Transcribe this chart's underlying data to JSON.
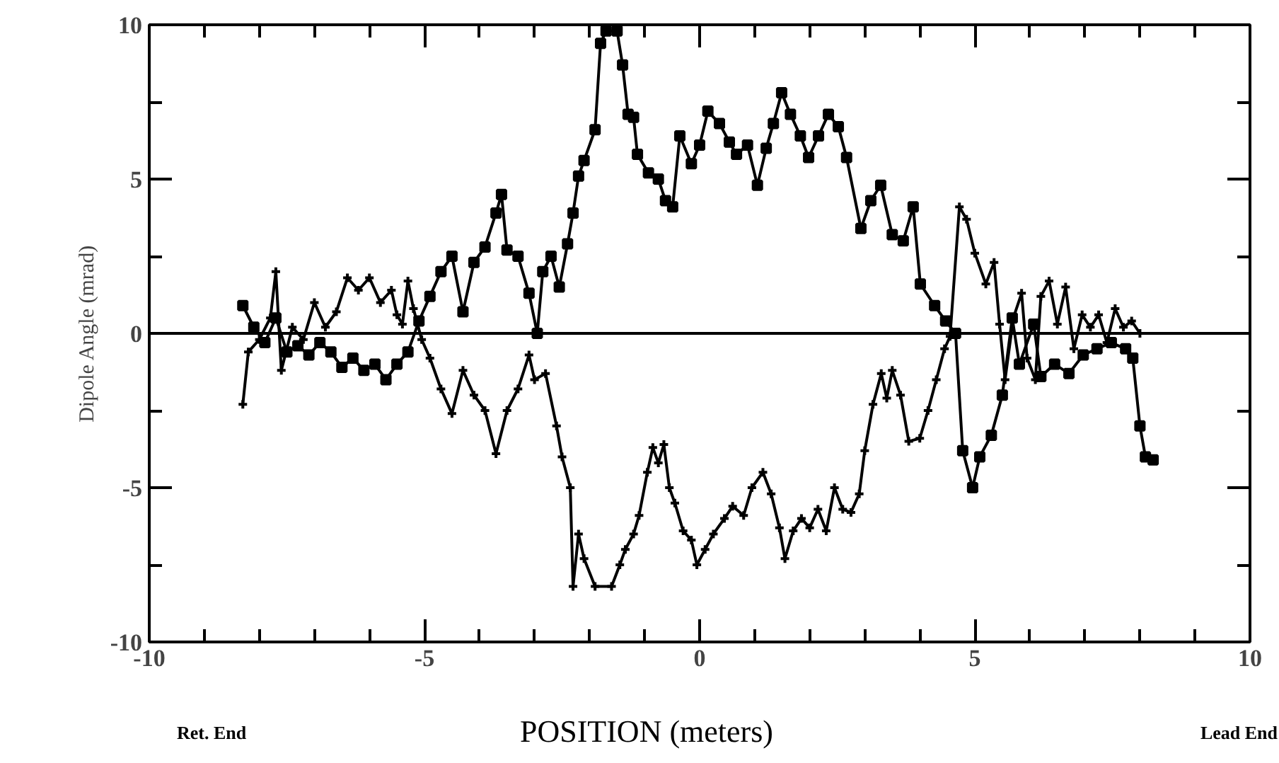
{
  "chart_data": {
    "type": "line",
    "xlabel": "POSITION (meters)",
    "ylabel": "Dipole Angle (mrad)",
    "annotations": [
      "Ret. End",
      "Lead End"
    ],
    "xlim": [
      -10,
      10
    ],
    "ylim": [
      -10,
      10
    ],
    "xticks": [
      -10,
      {
        "value": -9,
        "label": null
      },
      {
        "value": -8,
        "label": null
      },
      {
        "value": -7,
        "label": null
      },
      {
        "value": -6,
        "label": null
      },
      -5,
      {
        "value": -4,
        "label": null
      },
      {
        "value": -3,
        "label": null
      },
      {
        "value": -2,
        "label": null
      },
      {
        "value": -1,
        "label": null
      },
      0,
      {
        "value": 1,
        "label": null
      },
      {
        "value": 2,
        "label": null
      },
      {
        "value": 3,
        "label": null
      },
      {
        "value": 4,
        "label": null
      },
      5,
      {
        "value": 6,
        "label": null
      },
      {
        "value": 7,
        "label": null
      },
      {
        "value": 8,
        "label": null
      },
      {
        "value": 9,
        "label": null
      },
      10
    ],
    "yticks": [
      -10,
      {
        "value": -7.5,
        "label": null
      },
      -5,
      {
        "value": -2.5,
        "label": null
      },
      0,
      {
        "value": 2.5,
        "label": null
      },
      5,
      {
        "value": 7.5,
        "label": null
      },
      10
    ],
    "grid": false,
    "line_style": "solid",
    "ref_lines": [
      {
        "axis": "y",
        "value": 0,
        "color": "#000000"
      }
    ],
    "series": [
      {
        "color": "#000000",
        "marker": "square",
        "x": [
          -8.3,
          -8.1,
          -7.9,
          -7.7,
          -7.5,
          -7.3,
          -7.1,
          -6.9,
          -6.7,
          -6.5,
          -6.3,
          -6.1,
          -5.9,
          -5.7,
          -5.5,
          -5.3,
          -5.1,
          -4.9,
          -4.7,
          -4.5,
          -4.3,
          -4.1,
          -3.9,
          -3.7,
          -3.6,
          -3.5,
          -3.3,
          -3.1,
          -2.95,
          -2.85,
          -2.7,
          -2.55,
          -2.4,
          -2.3,
          -2.2,
          -2.1,
          -1.9,
          -1.8,
          -1.7,
          -1.5,
          -1.4,
          -1.3,
          -1.2,
          -1.13,
          -0.93,
          -0.75,
          -0.62,
          -0.49,
          -0.36,
          -0.15,
          0.0,
          0.15,
          0.36,
          0.54,
          0.67,
          0.87,
          1.05,
          1.21,
          1.34,
          1.49,
          1.65,
          1.83,
          1.98,
          2.16,
          2.34,
          2.52,
          2.67,
          2.93,
          3.11,
          3.29,
          3.5,
          3.7,
          3.88,
          4.01,
          4.27,
          4.47,
          4.65,
          4.78,
          4.96,
          5.09,
          5.3,
          5.5,
          5.68,
          5.81,
          6.07,
          6.2,
          6.45,
          6.71,
          6.97,
          7.22,
          7.48,
          7.74,
          7.87,
          8.0,
          8.1,
          8.24
        ],
        "values": [
          0.9,
          0.2,
          -0.3,
          0.5,
          -0.6,
          -0.4,
          -0.7,
          -0.3,
          -0.6,
          -1.1,
          -0.8,
          -1.2,
          -1.0,
          -1.5,
          -1.0,
          -0.6,
          0.4,
          1.2,
          2.0,
          2.5,
          0.7,
          2.3,
          2.8,
          3.9,
          4.5,
          2.7,
          2.5,
          1.3,
          0.0,
          2.0,
          2.5,
          1.5,
          2.9,
          3.9,
          5.1,
          5.6,
          6.6,
          9.4,
          9.8,
          9.8,
          8.7,
          7.1,
          7.0,
          5.8,
          5.2,
          5.0,
          4.3,
          4.1,
          6.4,
          5.5,
          6.1,
          7.2,
          6.8,
          6.2,
          5.8,
          6.1,
          4.8,
          6.0,
          6.8,
          7.8,
          7.1,
          6.4,
          5.7,
          6.4,
          7.1,
          6.7,
          5.7,
          3.4,
          4.3,
          4.8,
          3.2,
          3.0,
          4.1,
          1.6,
          0.9,
          0.4,
          0.0,
          -3.8,
          -5.0,
          -4.0,
          -3.3,
          -2.0,
          0.5,
          -1.0,
          0.3,
          -1.4,
          -1.0,
          -1.3,
          -0.7,
          -0.5,
          -0.3,
          -0.5,
          -0.8,
          -3.0,
          -4.0,
          -4.1
        ]
      },
      {
        "color": "#000000",
        "marker": "cross",
        "x": [
          -8.3,
          -8.2,
          -8.0,
          -7.8,
          -7.7,
          -7.6,
          -7.4,
          -7.2,
          -7.0,
          -6.8,
          -6.6,
          -6.4,
          -6.2,
          -6.0,
          -5.8,
          -5.6,
          -5.5,
          -5.4,
          -5.3,
          -5.2,
          -5.05,
          -4.9,
          -4.7,
          -4.5,
          -4.3,
          -4.1,
          -3.9,
          -3.7,
          -3.5,
          -3.3,
          -3.1,
          -3.0,
          -2.8,
          -2.6,
          -2.5,
          -2.35,
          -2.3,
          -2.2,
          -2.1,
          -1.9,
          -1.6,
          -1.45,
          -1.35,
          -1.2,
          -1.1,
          -0.95,
          -0.85,
          -0.75,
          -0.65,
          -0.55,
          -0.45,
          -0.3,
          -0.15,
          -0.05,
          0.1,
          0.25,
          0.45,
          0.6,
          0.8,
          0.95,
          1.15,
          1.3,
          1.45,
          1.55,
          1.7,
          1.85,
          2.0,
          2.15,
          2.3,
          2.45,
          2.6,
          2.75,
          2.9,
          3.0,
          3.15,
          3.3,
          3.4,
          3.5,
          3.65,
          3.8,
          4.0,
          4.15,
          4.3,
          4.45,
          4.55,
          4.72,
          4.85,
          5.0,
          5.2,
          5.35,
          5.45,
          5.55,
          5.7,
          5.85,
          5.95,
          6.1,
          6.2,
          6.35,
          6.5,
          6.65,
          6.8,
          6.95,
          7.1,
          7.25,
          7.4,
          7.55,
          7.7,
          7.85,
          8.0
        ],
        "values": [
          -2.3,
          -0.6,
          -0.2,
          0.5,
          2.0,
          -1.2,
          0.2,
          -0.2,
          1.0,
          0.2,
          0.7,
          1.8,
          1.4,
          1.8,
          1.0,
          1.4,
          0.6,
          0.3,
          1.7,
          0.8,
          -0.2,
          -0.8,
          -1.8,
          -2.6,
          -1.2,
          -2.0,
          -2.5,
          -3.9,
          -2.5,
          -1.8,
          -0.7,
          -1.5,
          -1.3,
          -3.0,
          -4.0,
          -5.0,
          -8.2,
          -6.5,
          -7.3,
          -8.2,
          -8.2,
          -7.5,
          -7.0,
          -6.5,
          -5.9,
          -4.5,
          -3.7,
          -4.2,
          -3.6,
          -5.0,
          -5.5,
          -6.4,
          -6.7,
          -7.5,
          -7.0,
          -6.5,
          -6.0,
          -5.6,
          -5.9,
          -5.0,
          -4.5,
          -5.2,
          -6.3,
          -7.3,
          -6.4,
          -6.0,
          -6.3,
          -5.7,
          -6.4,
          -5.0,
          -5.7,
          -5.8,
          -5.2,
          -3.8,
          -2.3,
          -1.3,
          -2.1,
          -1.2,
          -2.0,
          -3.5,
          -3.4,
          -2.5,
          -1.5,
          -0.5,
          -0.1,
          4.1,
          3.7,
          2.6,
          1.6,
          2.3,
          0.3,
          -1.5,
          0.5,
          1.3,
          -0.8,
          -1.5,
          1.2,
          1.7,
          0.3,
          1.5,
          -0.5,
          0.6,
          0.2,
          0.6,
          -0.3,
          0.8,
          0.2,
          0.4,
          0.0
        ]
      }
    ]
  }
}
